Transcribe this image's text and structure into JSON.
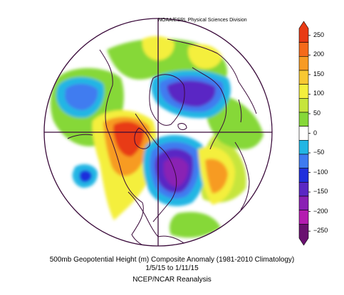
{
  "credit": "NOAA/ESRL Physical Sciences Division",
  "title": {
    "line1": "500mb Geopotential Height (m) Composite Anomaly (1981-2010 Climatology)",
    "line2": "1/5/15  to 1/11/15",
    "line3": "NCEP/NCAR Reanalysis"
  },
  "colorbar": {
    "labels": [
      "250",
      "200",
      "150",
      "100",
      "50",
      "0",
      "−50",
      "−100",
      "−150",
      "−200",
      "−250"
    ],
    "colors": [
      "#e83a14",
      "#f56a1a",
      "#f79b24",
      "#f8c832",
      "#f4ef3c",
      "#c6e53c",
      "#86d838",
      "#ffffff",
      "#22b6e4",
      "#3f7bf0",
      "#1f2fdc",
      "#5a27c4",
      "#8a20b4",
      "#b41cb0",
      "#6a1070"
    ]
  },
  "map": {
    "projection": "north-polar-stereographic",
    "anomalies": [
      {
        "name": "western-north-america-ridge",
        "sign": "positive"
      },
      {
        "name": "eastern-north-america-trough",
        "sign": "negative"
      },
      {
        "name": "northern-europe-trough",
        "sign": "negative"
      },
      {
        "name": "north-pacific-low",
        "sign": "negative"
      },
      {
        "name": "north-atlantic-ridge",
        "sign": "positive"
      }
    ]
  }
}
